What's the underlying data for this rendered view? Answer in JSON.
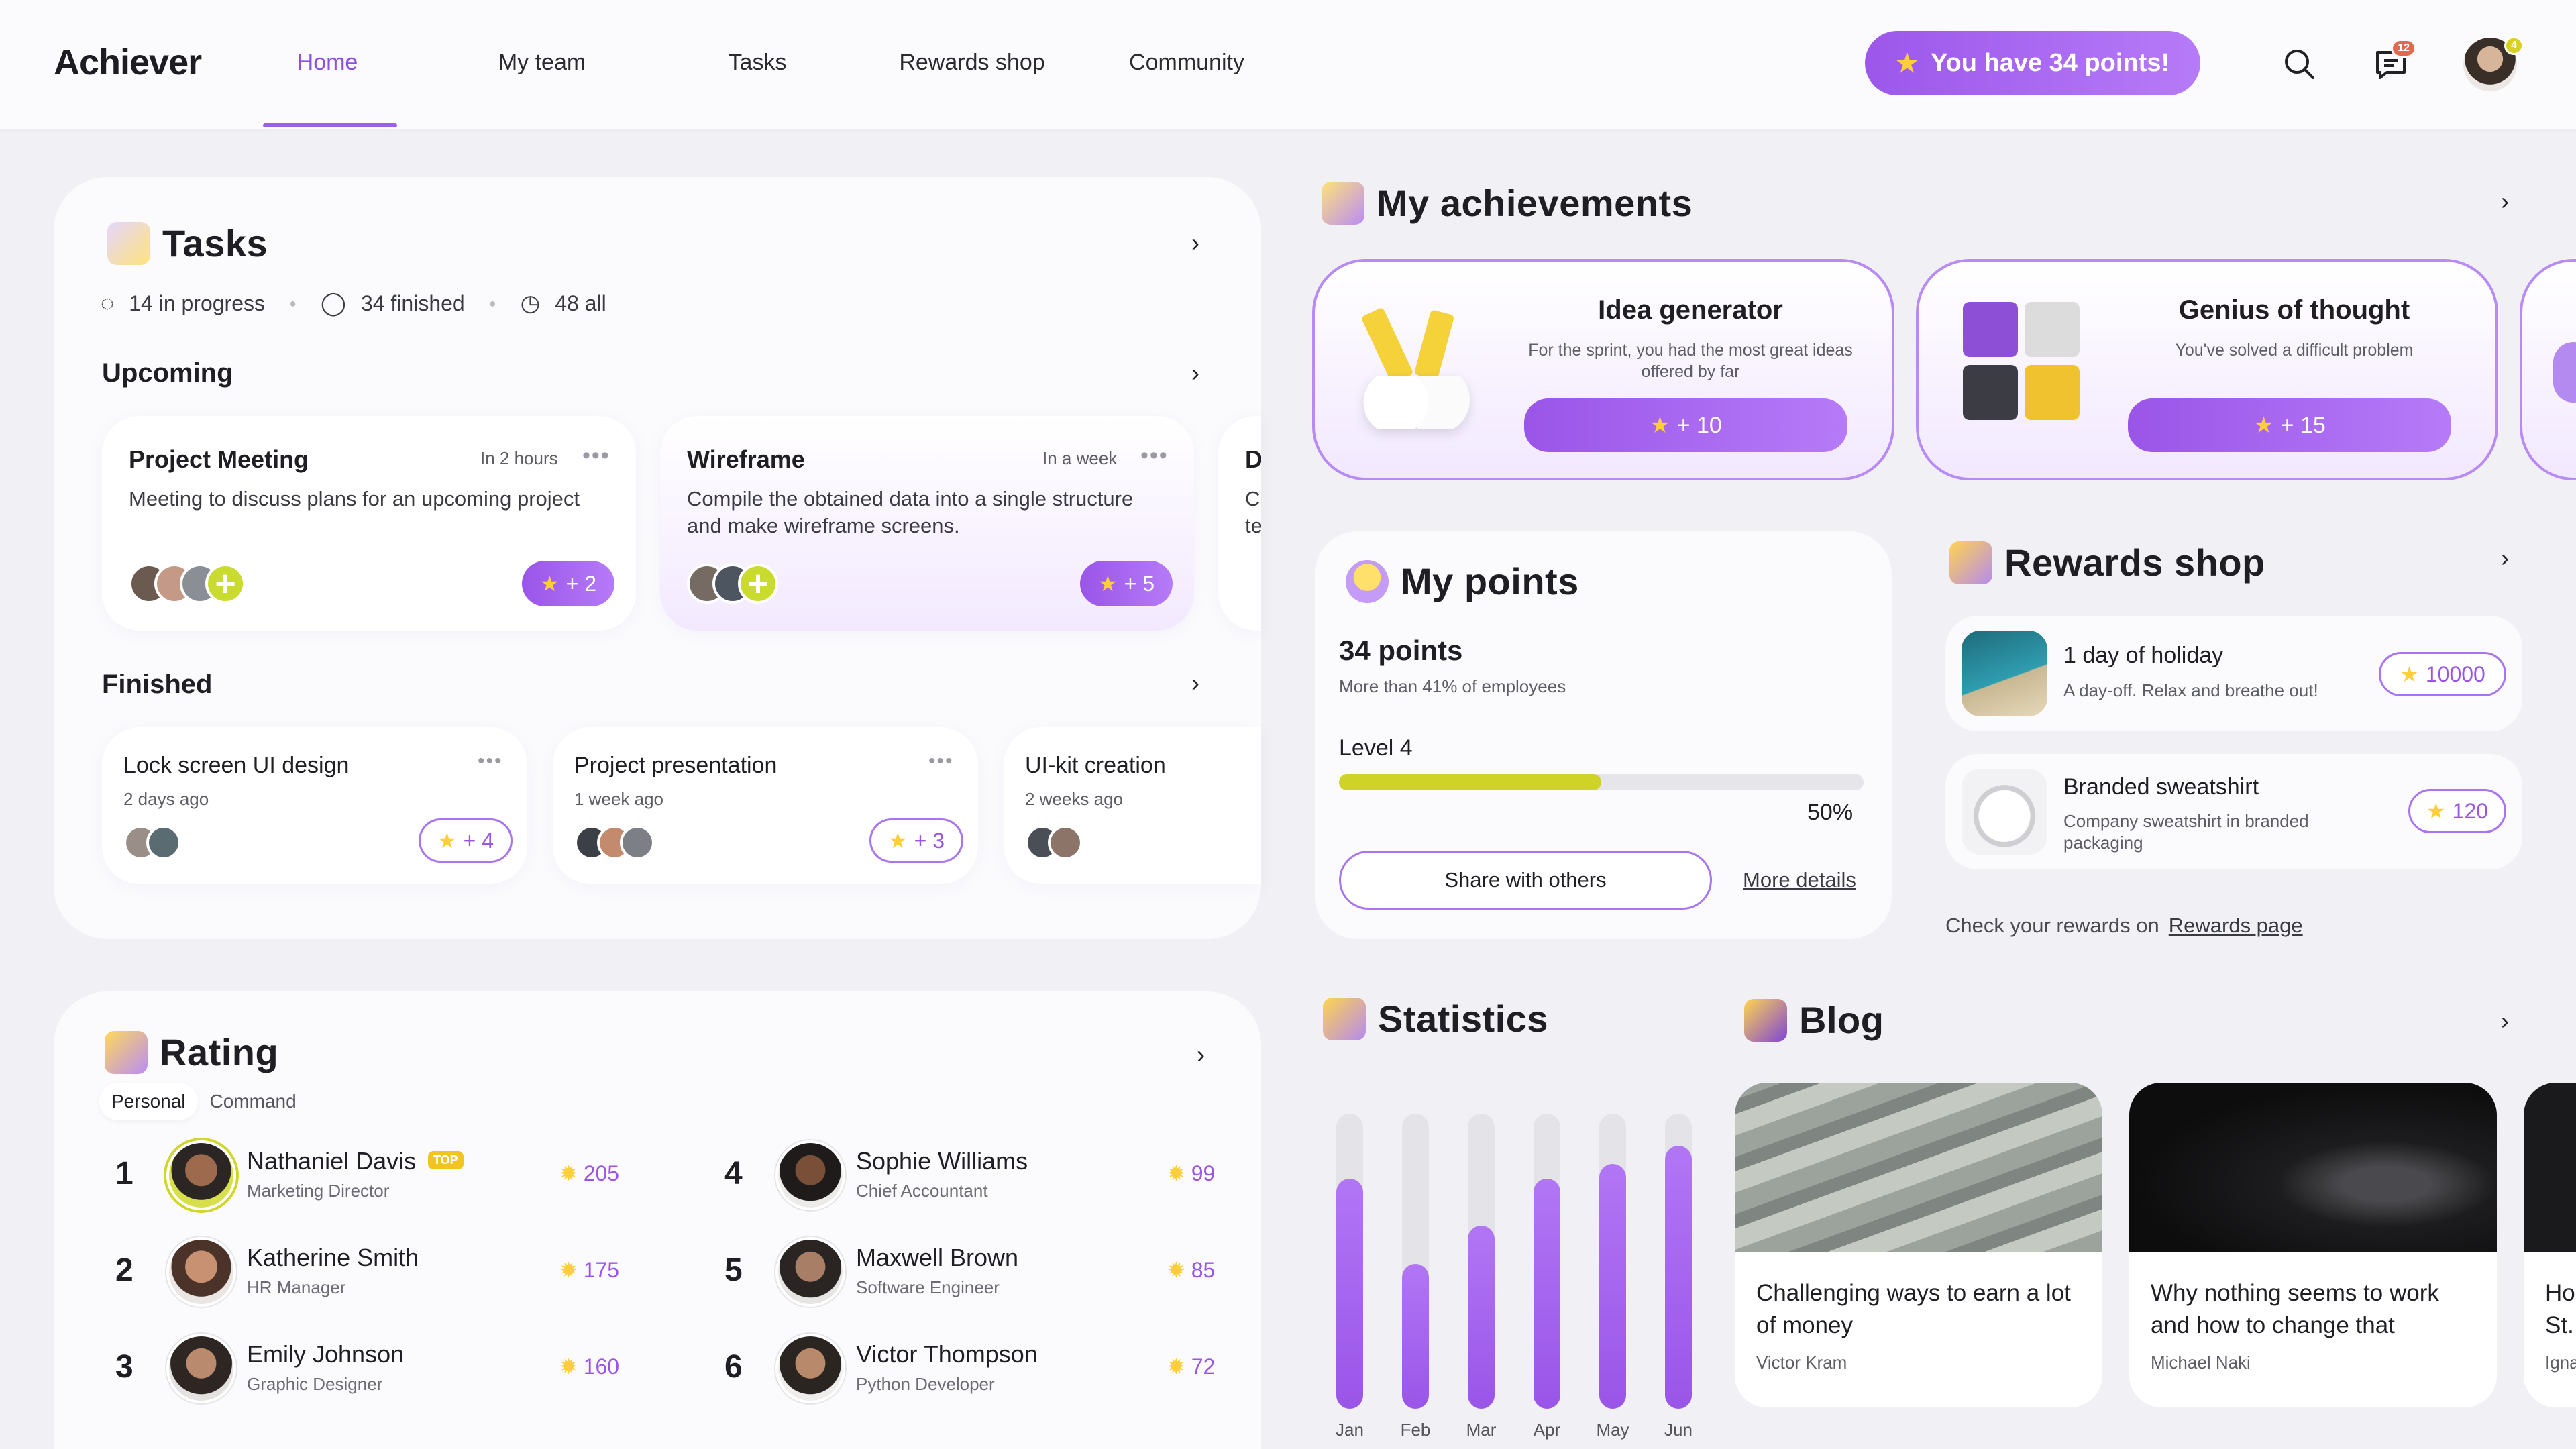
{
  "header": {
    "logo": "Achiever",
    "nav": [
      {
        "label": "Home",
        "active": true
      },
      {
        "label": "My team",
        "active": false
      },
      {
        "label": "Tasks",
        "active": false
      },
      {
        "label": "Rewards shop",
        "active": false
      },
      {
        "label": "Community",
        "active": false
      }
    ],
    "points_button": "You have 34 points!",
    "messages_badge": "12",
    "avatar_badge": "4",
    "icons": {
      "search": "search-icon",
      "messages": "chat-icon",
      "points": "star-icon"
    }
  },
  "tasks": {
    "title": "Tasks",
    "stats": {
      "in_progress": "14 in progress",
      "finished": "34 finished",
      "all": "48 all"
    },
    "upcoming": {
      "title": "Upcoming",
      "items": [
        {
          "title": "Project Meeting",
          "time": "In 2 hours",
          "desc": "Meeting to discuss plans for an upcoming project",
          "reward": "+ 2"
        },
        {
          "title": "Wireframe",
          "time": "In a week",
          "desc": "Compile the obtained data into a single structure and make wireframe screens.",
          "reward": "+ 5"
        },
        {
          "title": "D",
          "desc_line1": "C",
          "desc_line2": "te"
        }
      ]
    },
    "finished": {
      "title": "Finished",
      "items": [
        {
          "title": "Lock screen UI design",
          "time": "2 days ago",
          "reward": "+ 4"
        },
        {
          "title": "Project presentation",
          "time": "1 week ago",
          "reward": "+ 3"
        },
        {
          "title": "UI-kit creation",
          "time": "2 weeks ago"
        }
      ]
    }
  },
  "rating": {
    "title": "Rating",
    "tabs": [
      "Personal",
      "Command"
    ],
    "active_tab": "Personal",
    "top_badge": "TOP",
    "people": [
      {
        "rank": "1",
        "name": "Nathaniel Davis",
        "role": "Marketing Director",
        "points": "205"
      },
      {
        "rank": "2",
        "name": "Katherine Smith",
        "role": "HR Manager",
        "points": "175"
      },
      {
        "rank": "3",
        "name": "Emily Johnson",
        "role": "Graphic Designer",
        "points": "160"
      },
      {
        "rank": "4",
        "name": "Sophie Williams",
        "role": "Chief Accountant",
        "points": "99"
      },
      {
        "rank": "5",
        "name": "Maxwell Brown",
        "role": "Software Engineer",
        "points": "85"
      },
      {
        "rank": "6",
        "name": "Victor Thompson",
        "role": "Python Developer",
        "points": "72"
      }
    ]
  },
  "achievements": {
    "title": "My achievements",
    "items": [
      {
        "title": "Idea generator",
        "desc": "For the sprint, you had the most great ideas offered by far",
        "reward": "+ 10"
      },
      {
        "title": "Genius of thought",
        "desc": "You've solved a difficult problem",
        "reward": "+ 15"
      }
    ]
  },
  "my_points": {
    "title": "My points",
    "value": "34 points",
    "compare": "More than 41% of employees",
    "level": "Level 4",
    "progress_label": "50%",
    "progress": 0.5,
    "share_button": "Share with others",
    "more_link": "More details"
  },
  "rewards_shop": {
    "title": "Rewards shop",
    "items": [
      {
        "title": "1 day of holiday",
        "desc": "A day-off. Relax and breathe out!",
        "price": "10000"
      },
      {
        "title": "Branded sweatshirt",
        "desc": "Company sweatshirt in branded packaging",
        "price": "120"
      }
    ],
    "footer_text": "Check your rewards on",
    "footer_link": "Rewards page"
  },
  "statistics": {
    "title": "Statistics"
  },
  "chart_data": {
    "type": "bar",
    "categories": [
      "Jan",
      "Feb",
      "Mar",
      "Apr",
      "May",
      "Jun"
    ],
    "values": [
      0.78,
      0.49,
      0.62,
      0.78,
      0.83,
      0.89
    ],
    "ylim": [
      0,
      1
    ],
    "grid": false
  },
  "blog": {
    "title": "Blog",
    "posts": [
      {
        "title": "Challenging ways to earn a lot of money",
        "author": "Victor Kram"
      },
      {
        "title": "Why nothing seems to work and how to change that",
        "author": "Michael Naki"
      },
      {
        "title_line1": "Ho",
        "title_line2": "St.",
        "author": "Igna"
      }
    ]
  },
  "colors": {
    "accent": "#9a55e8",
    "accent_light": "#b67bf8",
    "lime": "#c8db2e",
    "background": "#f1f0f4"
  }
}
